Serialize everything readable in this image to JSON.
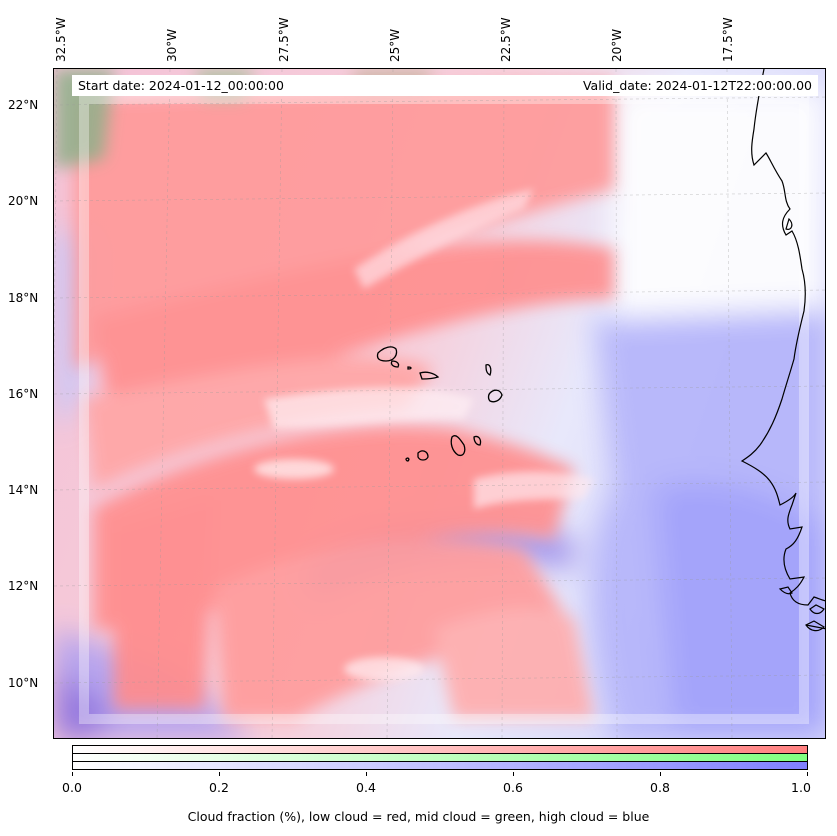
{
  "map": {
    "start_date": "Start date: 2024-01-12_00:00:00",
    "valid_date": "Valid_date: 2024-01-12T22:00:00.00",
    "longitude_labels": [
      "32.5°W",
      "30°W",
      "27.5°W",
      "25°W",
      "22.5°W",
      "20°W",
      "17.5°W"
    ],
    "latitude_labels": [
      "22°N",
      "20°N",
      "18°N",
      "16°N",
      "14°N",
      "12°N",
      "10°N"
    ],
    "colors": {
      "low_cloud": "#ff8080",
      "mid_cloud": "#80ff80",
      "high_cloud": "#8080ff",
      "coastline": "#000000"
    }
  },
  "colorbar": {
    "ticks": [
      "0.0",
      "0.2",
      "0.4",
      "0.6",
      "0.8",
      "1.0"
    ],
    "range": [
      0.0,
      1.0
    ],
    "caption": "Cloud fraction (%), low cloud = red, mid cloud = green, high cloud = blue"
  }
}
